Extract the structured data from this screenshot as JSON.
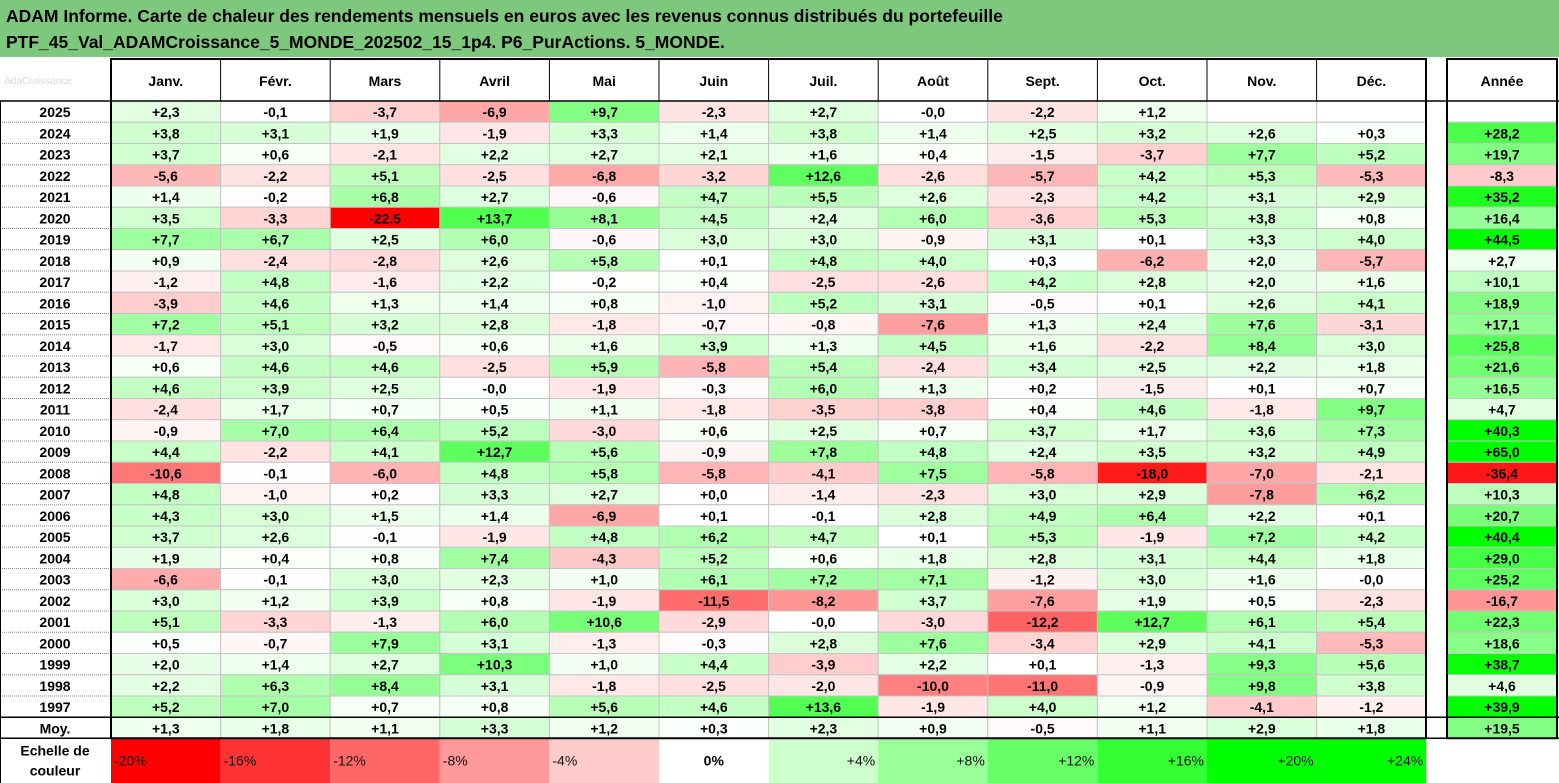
{
  "title": {
    "line1": "ADAM Informe. Carte de chaleur des rendements mensuels en euros avec les revenus connus distribués du portefeuille",
    "line2": "PTF_45_Val_ADAMCroissance_5_MONDE_202502_15_1p4. P6_PurActions. 5_MONDE."
  },
  "watermark": "AdaCroissance",
  "chart_data": {
    "type": "heatmap",
    "columns": [
      "Janv.",
      "Févr.",
      "Mars",
      "Avril",
      "Mai",
      "Juin",
      "Juil.",
      "Août",
      "Sept.",
      "Oct.",
      "Nov.",
      "Déc."
    ],
    "year_column": "Année",
    "rows": [
      {
        "year": "2025",
        "values": [
          "+2,3",
          "-0,1",
          "-3,7",
          "-6,9",
          "+9,7",
          "-2,3",
          "+2,7",
          "-0,0",
          "-2,2",
          "+1,2",
          "",
          ""
        ],
        "total": ""
      },
      {
        "year": "2024",
        "values": [
          "+3,8",
          "+3,1",
          "+1,9",
          "-1,9",
          "+3,3",
          "+1,4",
          "+3,8",
          "+1,4",
          "+2,5",
          "+3,2",
          "+2,6",
          "+0,3"
        ],
        "total": "+28,2"
      },
      {
        "year": "2023",
        "values": [
          "+3,7",
          "+0,6",
          "-2,1",
          "+2,2",
          "+2,7",
          "+2,1",
          "+1,6",
          "+0,4",
          "-1,5",
          "-3,7",
          "+7,7",
          "+5,2"
        ],
        "total": "+19,7"
      },
      {
        "year": "2022",
        "values": [
          "-5,6",
          "-2,2",
          "+5,1",
          "-2,5",
          "-6,8",
          "-3,2",
          "+12,6",
          "-2,6",
          "-5,7",
          "+4,2",
          "+5,3",
          "-5,3"
        ],
        "total": "-8,3"
      },
      {
        "year": "2021",
        "values": [
          "+1,4",
          "-0,2",
          "+6,8",
          "+2,7",
          "-0,6",
          "+4,7",
          "+5,5",
          "+2,6",
          "-2,3",
          "+4,2",
          "+3,1",
          "+2,9"
        ],
        "total": "+35,2"
      },
      {
        "year": "2020",
        "values": [
          "+3,5",
          "-3,3",
          "-22,5",
          "+13,7",
          "+8,1",
          "+4,5",
          "+2,4",
          "+6,0",
          "-3,6",
          "+5,3",
          "+3,8",
          "+0,8"
        ],
        "total": "+16,4"
      },
      {
        "year": "2019",
        "values": [
          "+7,7",
          "+6,7",
          "+2,5",
          "+6,0",
          "-0,6",
          "+3,0",
          "+3,0",
          "-0,9",
          "+3,1",
          "+0,1",
          "+3,3",
          "+4,0"
        ],
        "total": "+44,5"
      },
      {
        "year": "2018",
        "values": [
          "+0,9",
          "-2,4",
          "-2,8",
          "+2,6",
          "+5,8",
          "+0,1",
          "+4,8",
          "+4,0",
          "+0,3",
          "-6,2",
          "+2,0",
          "-5,7"
        ],
        "total": "+2,7"
      },
      {
        "year": "2017",
        "values": [
          "-1,2",
          "+4,8",
          "-1,6",
          "+2,2",
          "-0,2",
          "+0,4",
          "-2,5",
          "-2,6",
          "+4,2",
          "+2,8",
          "+2,0",
          "+1,6"
        ],
        "total": "+10,1"
      },
      {
        "year": "2016",
        "values": [
          "-3,9",
          "+4,6",
          "+1,3",
          "+1,4",
          "+0,8",
          "-1,0",
          "+5,2",
          "+3,1",
          "-0,5",
          "+0,1",
          "+2,6",
          "+4,1"
        ],
        "total": "+18,9"
      },
      {
        "year": "2015",
        "values": [
          "+7,2",
          "+5,1",
          "+3,2",
          "+2,8",
          "-1,8",
          "-0,7",
          "-0,8",
          "-7,6",
          "+1,3",
          "+2,4",
          "+7,6",
          "-3,1"
        ],
        "total": "+17,1"
      },
      {
        "year": "2014",
        "values": [
          "-1,7",
          "+3,0",
          "-0,5",
          "+0,6",
          "+1,6",
          "+3,9",
          "+1,3",
          "+4,5",
          "+1,6",
          "-2,2",
          "+8,4",
          "+3,0"
        ],
        "total": "+25,8"
      },
      {
        "year": "2013",
        "values": [
          "+0,6",
          "+4,6",
          "+4,6",
          "-2,5",
          "+5,9",
          "-5,8",
          "+5,4",
          "-2,4",
          "+3,4",
          "+2,5",
          "+2,2",
          "+1,8"
        ],
        "total": "+21,6"
      },
      {
        "year": "2012",
        "values": [
          "+4,6",
          "+3,9",
          "+2,5",
          "-0,0",
          "-1,9",
          "-0,3",
          "+6,0",
          "+1,3",
          "+0,2",
          "-1,5",
          "+0,1",
          "+0,7"
        ],
        "total": "+16,5"
      },
      {
        "year": "2011",
        "values": [
          "-2,4",
          "+1,7",
          "+0,7",
          "+0,5",
          "+1,1",
          "-1,8",
          "-3,5",
          "-3,8",
          "+0,4",
          "+4,6",
          "-1,8",
          "+9,7"
        ],
        "total": "+4,7"
      },
      {
        "year": "2010",
        "values": [
          "-0,9",
          "+7,0",
          "+6,4",
          "+5,2",
          "-3,0",
          "+0,6",
          "+2,5",
          "+0,7",
          "+3,7",
          "+1,7",
          "+3,6",
          "+7,3"
        ],
        "total": "+40,3"
      },
      {
        "year": "2009",
        "values": [
          "+4,4",
          "-2,2",
          "+4,1",
          "+12,7",
          "+5,6",
          "-0,9",
          "+7,8",
          "+4,8",
          "+2,4",
          "+3,5",
          "+3,2",
          "+4,9"
        ],
        "total": "+65,0"
      },
      {
        "year": "2008",
        "values": [
          "-10,6",
          "-0,1",
          "-6,0",
          "+4,8",
          "+5,8",
          "-5,8",
          "-4,1",
          "+7,5",
          "-5,8",
          "-18,0",
          "-7,0",
          "-2,1"
        ],
        "total": "-36,4"
      },
      {
        "year": "2007",
        "values": [
          "+4,8",
          "-1,0",
          "+0,2",
          "+3,3",
          "+2,7",
          "+0,0",
          "-1,4",
          "-2,3",
          "+3,0",
          "+2,9",
          "-7,8",
          "+6,2"
        ],
        "total": "+10,3"
      },
      {
        "year": "2006",
        "values": [
          "+4,3",
          "+3,0",
          "+1,5",
          "+1,4",
          "-6,9",
          "+0,1",
          "-0,1",
          "+2,8",
          "+4,9",
          "+6,4",
          "+2,2",
          "+0,1"
        ],
        "total": "+20,7"
      },
      {
        "year": "2005",
        "values": [
          "+3,7",
          "+2,6",
          "-0,1",
          "-1,9",
          "+4,8",
          "+6,2",
          "+4,7",
          "+0,1",
          "+5,3",
          "-1,9",
          "+7,2",
          "+4,2"
        ],
        "total": "+40,4"
      },
      {
        "year": "2004",
        "values": [
          "+1,9",
          "+0,4",
          "+0,8",
          "+7,4",
          "-4,3",
          "+5,2",
          "+0,6",
          "+1,8",
          "+2,8",
          "+3,1",
          "+4,4",
          "+1,8"
        ],
        "total": "+29,0"
      },
      {
        "year": "2003",
        "values": [
          "-6,6",
          "-0,1",
          "+3,0",
          "+2,3",
          "+1,0",
          "+6,1",
          "+7,2",
          "+7,1",
          "-1,2",
          "+3,0",
          "+1,6",
          "-0,0"
        ],
        "total": "+25,2"
      },
      {
        "year": "2002",
        "values": [
          "+3,0",
          "+1,2",
          "+3,9",
          "+0,8",
          "-1,9",
          "-11,5",
          "-8,2",
          "+3,7",
          "-7,6",
          "+1,9",
          "+0,5",
          "-2,3"
        ],
        "total": "-16,7"
      },
      {
        "year": "2001",
        "values": [
          "+5,1",
          "-3,3",
          "-1,3",
          "+6,0",
          "+10,6",
          "-2,9",
          "-0,0",
          "-3,0",
          "-12,2",
          "+12,7",
          "+6,1",
          "+5,4"
        ],
        "total": "+22,3"
      },
      {
        "year": "2000",
        "values": [
          "+0,5",
          "-0,7",
          "+7,9",
          "+3,1",
          "-1,3",
          "-0,3",
          "+2,8",
          "+7,6",
          "-3,4",
          "+2,9",
          "+4,1",
          "-5,3"
        ],
        "total": "+18,6"
      },
      {
        "year": "1999",
        "values": [
          "+2,0",
          "+1,4",
          "+2,7",
          "+10,3",
          "+1,0",
          "+4,4",
          "-3,9",
          "+2,2",
          "+0,1",
          "-1,3",
          "+9,3",
          "+5,6"
        ],
        "total": "+38,7"
      },
      {
        "year": "1998",
        "values": [
          "+2,2",
          "+6,3",
          "+8,4",
          "+3,1",
          "-1,8",
          "-2,5",
          "-2,0",
          "-10,0",
          "-11,0",
          "-0,9",
          "+9,8",
          "+3,8"
        ],
        "total": "+4,6"
      },
      {
        "year": "1997",
        "values": [
          "+5,2",
          "+7,0",
          "+0,7",
          "+0,8",
          "+5,6",
          "+4,6",
          "+13,6",
          "-1,9",
          "+4,0",
          "+1,2",
          "-4,1",
          "-1,2"
        ],
        "total": "+39,9"
      }
    ],
    "average": {
      "label": "Moy.",
      "values": [
        "+1,3",
        "+1,8",
        "+1,1",
        "+3,3",
        "+1,2",
        "+0,3",
        "+2,3",
        "+0,9",
        "-0,5",
        "+1,1",
        "+2,9",
        "+1,8"
      ],
      "total": "+19,5"
    },
    "scale": {
      "label_line1": "Echelle de",
      "label_line2": "couleur",
      "steps": [
        "-20%",
        "-16%",
        "-12%",
        "-8%",
        "-4%",
        "0%",
        "+4%",
        "+8%",
        "+12%",
        "+16%",
        "+20%",
        "+24%"
      ],
      "step_values": [
        -20,
        -16,
        -12,
        -8,
        -4,
        0,
        4,
        8,
        12,
        16,
        20,
        24
      ]
    },
    "colors": {
      "negative": "#ff0000",
      "positive": "#00ff00",
      "neutral": "#ffffff",
      "header_band": "#7ec87e"
    }
  }
}
